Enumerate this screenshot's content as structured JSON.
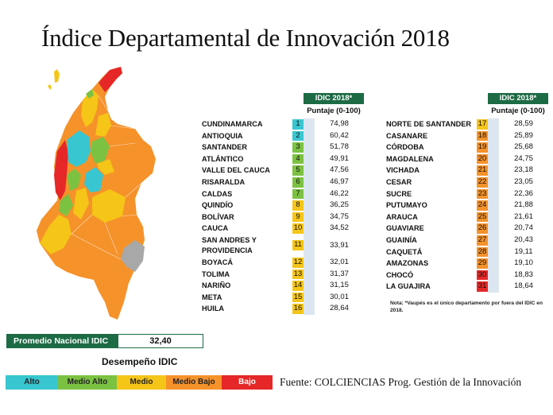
{
  "title": "Índice Departamental de Innovación 2018",
  "table_header": "IDIC 2018*",
  "table_subheader": "Puntaje (0-100)",
  "rank_colors": {
    "alto": "#38c6d0",
    "medio_alto": "#7cc242",
    "medio": "#f5c518",
    "medio_bajo": "#f5922a",
    "bajo": "#e62727"
  },
  "left_rows": [
    {
      "name": "CUNDINAMARCA",
      "rank": "1",
      "score": "74,98",
      "level": "alto"
    },
    {
      "name": "ANTIOQUIA",
      "rank": "2",
      "score": "60,42",
      "level": "alto"
    },
    {
      "name": "SANTANDER",
      "rank": "3",
      "score": "51,78",
      "level": "medio_alto"
    },
    {
      "name": "ATLÁNTICO",
      "rank": "4",
      "score": "49,91",
      "level": "medio_alto"
    },
    {
      "name": "VALLE DEL CAUCA",
      "rank": "5",
      "score": "47,56",
      "level": "medio_alto"
    },
    {
      "name": "RISARALDA",
      "rank": "6",
      "score": "46,97",
      "level": "medio_alto"
    },
    {
      "name": "CALDAS",
      "rank": "7",
      "score": "46,22",
      "level": "medio_alto"
    },
    {
      "name": "QUINDÍO",
      "rank": "8",
      "score": "36,25",
      "level": "medio"
    },
    {
      "name": "BOLÍVAR",
      "rank": "9",
      "score": "34,75",
      "level": "medio"
    },
    {
      "name": "CAUCA",
      "rank": "10",
      "score": "34,52",
      "level": "medio"
    },
    {
      "name": "SAN ANDRES Y\nPROVIDENCIA",
      "rank": "11",
      "score": "33,91",
      "level": "medio"
    },
    {
      "name": "BOYACÁ",
      "rank": "12",
      "score": "32,01",
      "level": "medio"
    },
    {
      "name": "TOLIMA",
      "rank": "13",
      "score": "31,37",
      "level": "medio"
    },
    {
      "name": "NARIÑO",
      "rank": "14",
      "score": "31,15",
      "level": "medio"
    },
    {
      "name": "META",
      "rank": "15",
      "score": "30,01",
      "level": "medio"
    },
    {
      "name": "HUILA",
      "rank": "16",
      "score": "28,64",
      "level": "medio"
    }
  ],
  "right_rows": [
    {
      "name": "NORTE DE SANTANDER",
      "rank": "17",
      "score": "28,59",
      "level": "medio"
    },
    {
      "name": "CASANARE",
      "rank": "18",
      "score": "25,89",
      "level": "medio_bajo"
    },
    {
      "name": "CÓRDOBA",
      "rank": "19",
      "score": "25,68",
      "level": "medio_bajo"
    },
    {
      "name": "MAGDALENA",
      "rank": "20",
      "score": "24,75",
      "level": "medio_bajo"
    },
    {
      "name": "VICHADA",
      "rank": "21",
      "score": "23,18",
      "level": "medio_bajo"
    },
    {
      "name": "CESAR",
      "rank": "22",
      "score": "23,05",
      "level": "medio_bajo"
    },
    {
      "name": "SUCRE",
      "rank": "23",
      "score": "22,36",
      "level": "medio_bajo"
    },
    {
      "name": "PUTUMAYO",
      "rank": "24",
      "score": "21,88",
      "level": "medio_bajo"
    },
    {
      "name": "ARAUCA",
      "rank": "25",
      "score": "21,61",
      "level": "medio_bajo"
    },
    {
      "name": "GUAVIARE",
      "rank": "26",
      "score": "20,74",
      "level": "medio_bajo"
    },
    {
      "name": "GUAINÍA",
      "rank": "27",
      "score": "20,43",
      "level": "medio_bajo"
    },
    {
      "name": "CAQUETÁ",
      "rank": "28",
      "score": "19,11",
      "level": "medio_bajo"
    },
    {
      "name": "AMAZONAS",
      "rank": "29",
      "score": "19,10",
      "level": "medio_bajo"
    },
    {
      "name": "CHOCÓ",
      "rank": "30",
      "score": "18,83",
      "level": "bajo"
    },
    {
      "name": "LA GUAJIRA",
      "rank": "31",
      "score": "18,64",
      "level": "bajo"
    }
  ],
  "note": "Nota: *Vaupés es el único departamento por fuera del IDIC en 2018.",
  "promedio": {
    "label": "Promedio Nacional IDIC",
    "value": "32,40"
  },
  "desempeno_title": "Desempeño IDIC",
  "legend": [
    {
      "label": "Alto",
      "color": "#38c6d0"
    },
    {
      "label": "Medio Alto",
      "color": "#7cc242"
    },
    {
      "label": "Medio",
      "color": "#f5c518"
    },
    {
      "label": "Medio Bajo",
      "color": "#f5922a"
    },
    {
      "label": "Bajo",
      "color": "#e62727"
    }
  ],
  "source": "Fuente: COLCIENCIAS Prog. Gestión de la Innovación"
}
